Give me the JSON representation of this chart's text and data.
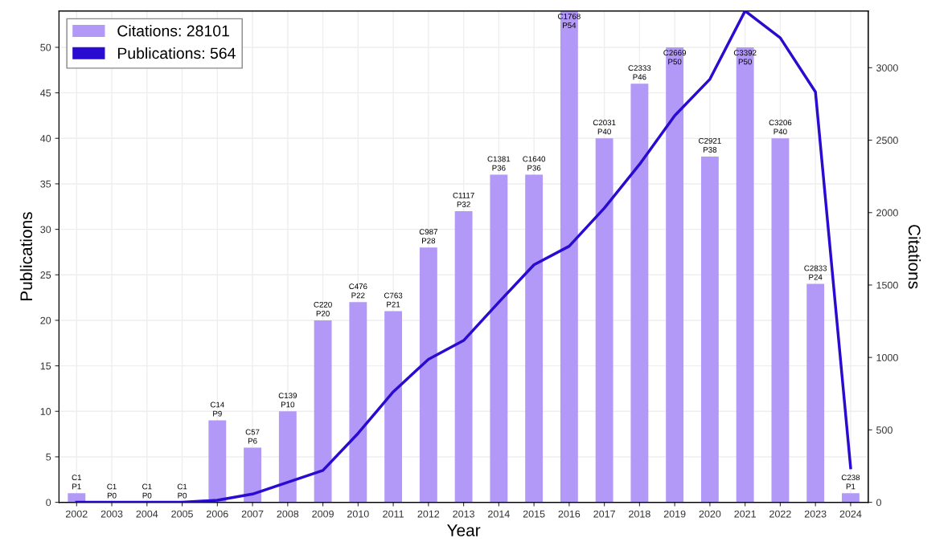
{
  "chart_data": {
    "type": "bar",
    "xlabel": "Year",
    "ylabel": "Publications",
    "y2label": "Citations",
    "categories": [
      "2002",
      "2003",
      "2004",
      "2005",
      "2006",
      "2007",
      "2008",
      "2009",
      "2010",
      "2011",
      "2012",
      "2013",
      "2014",
      "2015",
      "2016",
      "2017",
      "2018",
      "2019",
      "2020",
      "2021",
      "2022",
      "2023",
      "2024"
    ],
    "series": [
      {
        "name": "Citations: 28101",
        "color": "#b399f7",
        "values": [
          1,
          0,
          0,
          0,
          9,
          6,
          10,
          20,
          22,
          21,
          28,
          32,
          36,
          36,
          54,
          40,
          46,
          50,
          38,
          50,
          40,
          24,
          1
        ],
        "value_labels": [
          "C1\nP1",
          "C1\nP0",
          "C1\nP0",
          "C1\nP0",
          "C14\nP9",
          "C57\nP6",
          "C139\nP10",
          "C220\nP20",
          "C476\nP22",
          "C763\nP21",
          "C987\nP28",
          "C1117\nP32",
          "C1381\nP36",
          "C1640\nP36",
          "C1768\nP54",
          "C2031\nP40",
          "C2333\nP46",
          "C2669\nP50",
          "C2921\nP38",
          "C3392\nP50",
          "C3206\nP40",
          "C2833\nP24",
          "C238\nP1"
        ]
      },
      {
        "name": "Publications: 564",
        "type": "line",
        "axis": "y2",
        "color": "#2a0bd0",
        "values": [
          1,
          1,
          1,
          1,
          14,
          57,
          139,
          220,
          476,
          763,
          987,
          1117,
          1381,
          1640,
          1768,
          2031,
          2333,
          2669,
          2921,
          3392,
          3206,
          2833,
          238
        ]
      }
    ],
    "ylim": [
      0,
      54
    ],
    "yticks": [
      0,
      5,
      10,
      15,
      20,
      25,
      30,
      35,
      40,
      45,
      50
    ],
    "y2lim": [
      0,
      3392
    ],
    "y2ticks": [
      0,
      500,
      1000,
      1500,
      2000,
      2500,
      3000
    ],
    "grid": true,
    "legend": "top left"
  }
}
